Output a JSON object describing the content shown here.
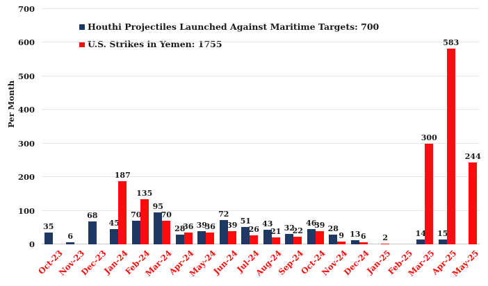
{
  "chart_data": {
    "type": "bar",
    "title": "",
    "xlabel": "",
    "ylabel": "Per Month",
    "ylim": [
      0,
      700
    ],
    "yticks": [
      0,
      100,
      200,
      300,
      400,
      500,
      600,
      700
    ],
    "grid": true,
    "legend_position": "top-left-inside",
    "categories": [
      "Oct-23",
      "Nov-23",
      "Dec-23",
      "Jan-24",
      "Feb-24",
      "Mar-24",
      "Apr-24",
      "May-24",
      "Jun-24",
      "Jul-24",
      "Aug-24",
      "Sep-24",
      "Oct-24",
      "Nov-24",
      "Dec-24",
      "Jan-25",
      "Feb-25",
      "Mar-25",
      "Apr-25",
      "May-25"
    ],
    "series": [
      {
        "name": "Houthi Projectiles Launched Against Maritime Targets: 700",
        "color": "#1f3864",
        "values": [
          35,
          6,
          68,
          45,
          70,
          95,
          28,
          39,
          72,
          51,
          43,
          32,
          46,
          28,
          13,
          null,
          null,
          14,
          15,
          null
        ]
      },
      {
        "name": "U.S. Strikes in Yemen: 1755",
        "color": "#f90d0d",
        "values": [
          null,
          null,
          null,
          187,
          135,
          70,
          36,
          36,
          39,
          26,
          21,
          22,
          39,
          9,
          6,
          2,
          null,
          300,
          583,
          244
        ]
      }
    ],
    "colors": {
      "gridline": "#e7e7e7",
      "axis_line": "#c4c4c4",
      "tick_label": "#1a1a1a",
      "value_label": "#1b1b1b",
      "x_tick_label": "#f90d0d"
    }
  }
}
